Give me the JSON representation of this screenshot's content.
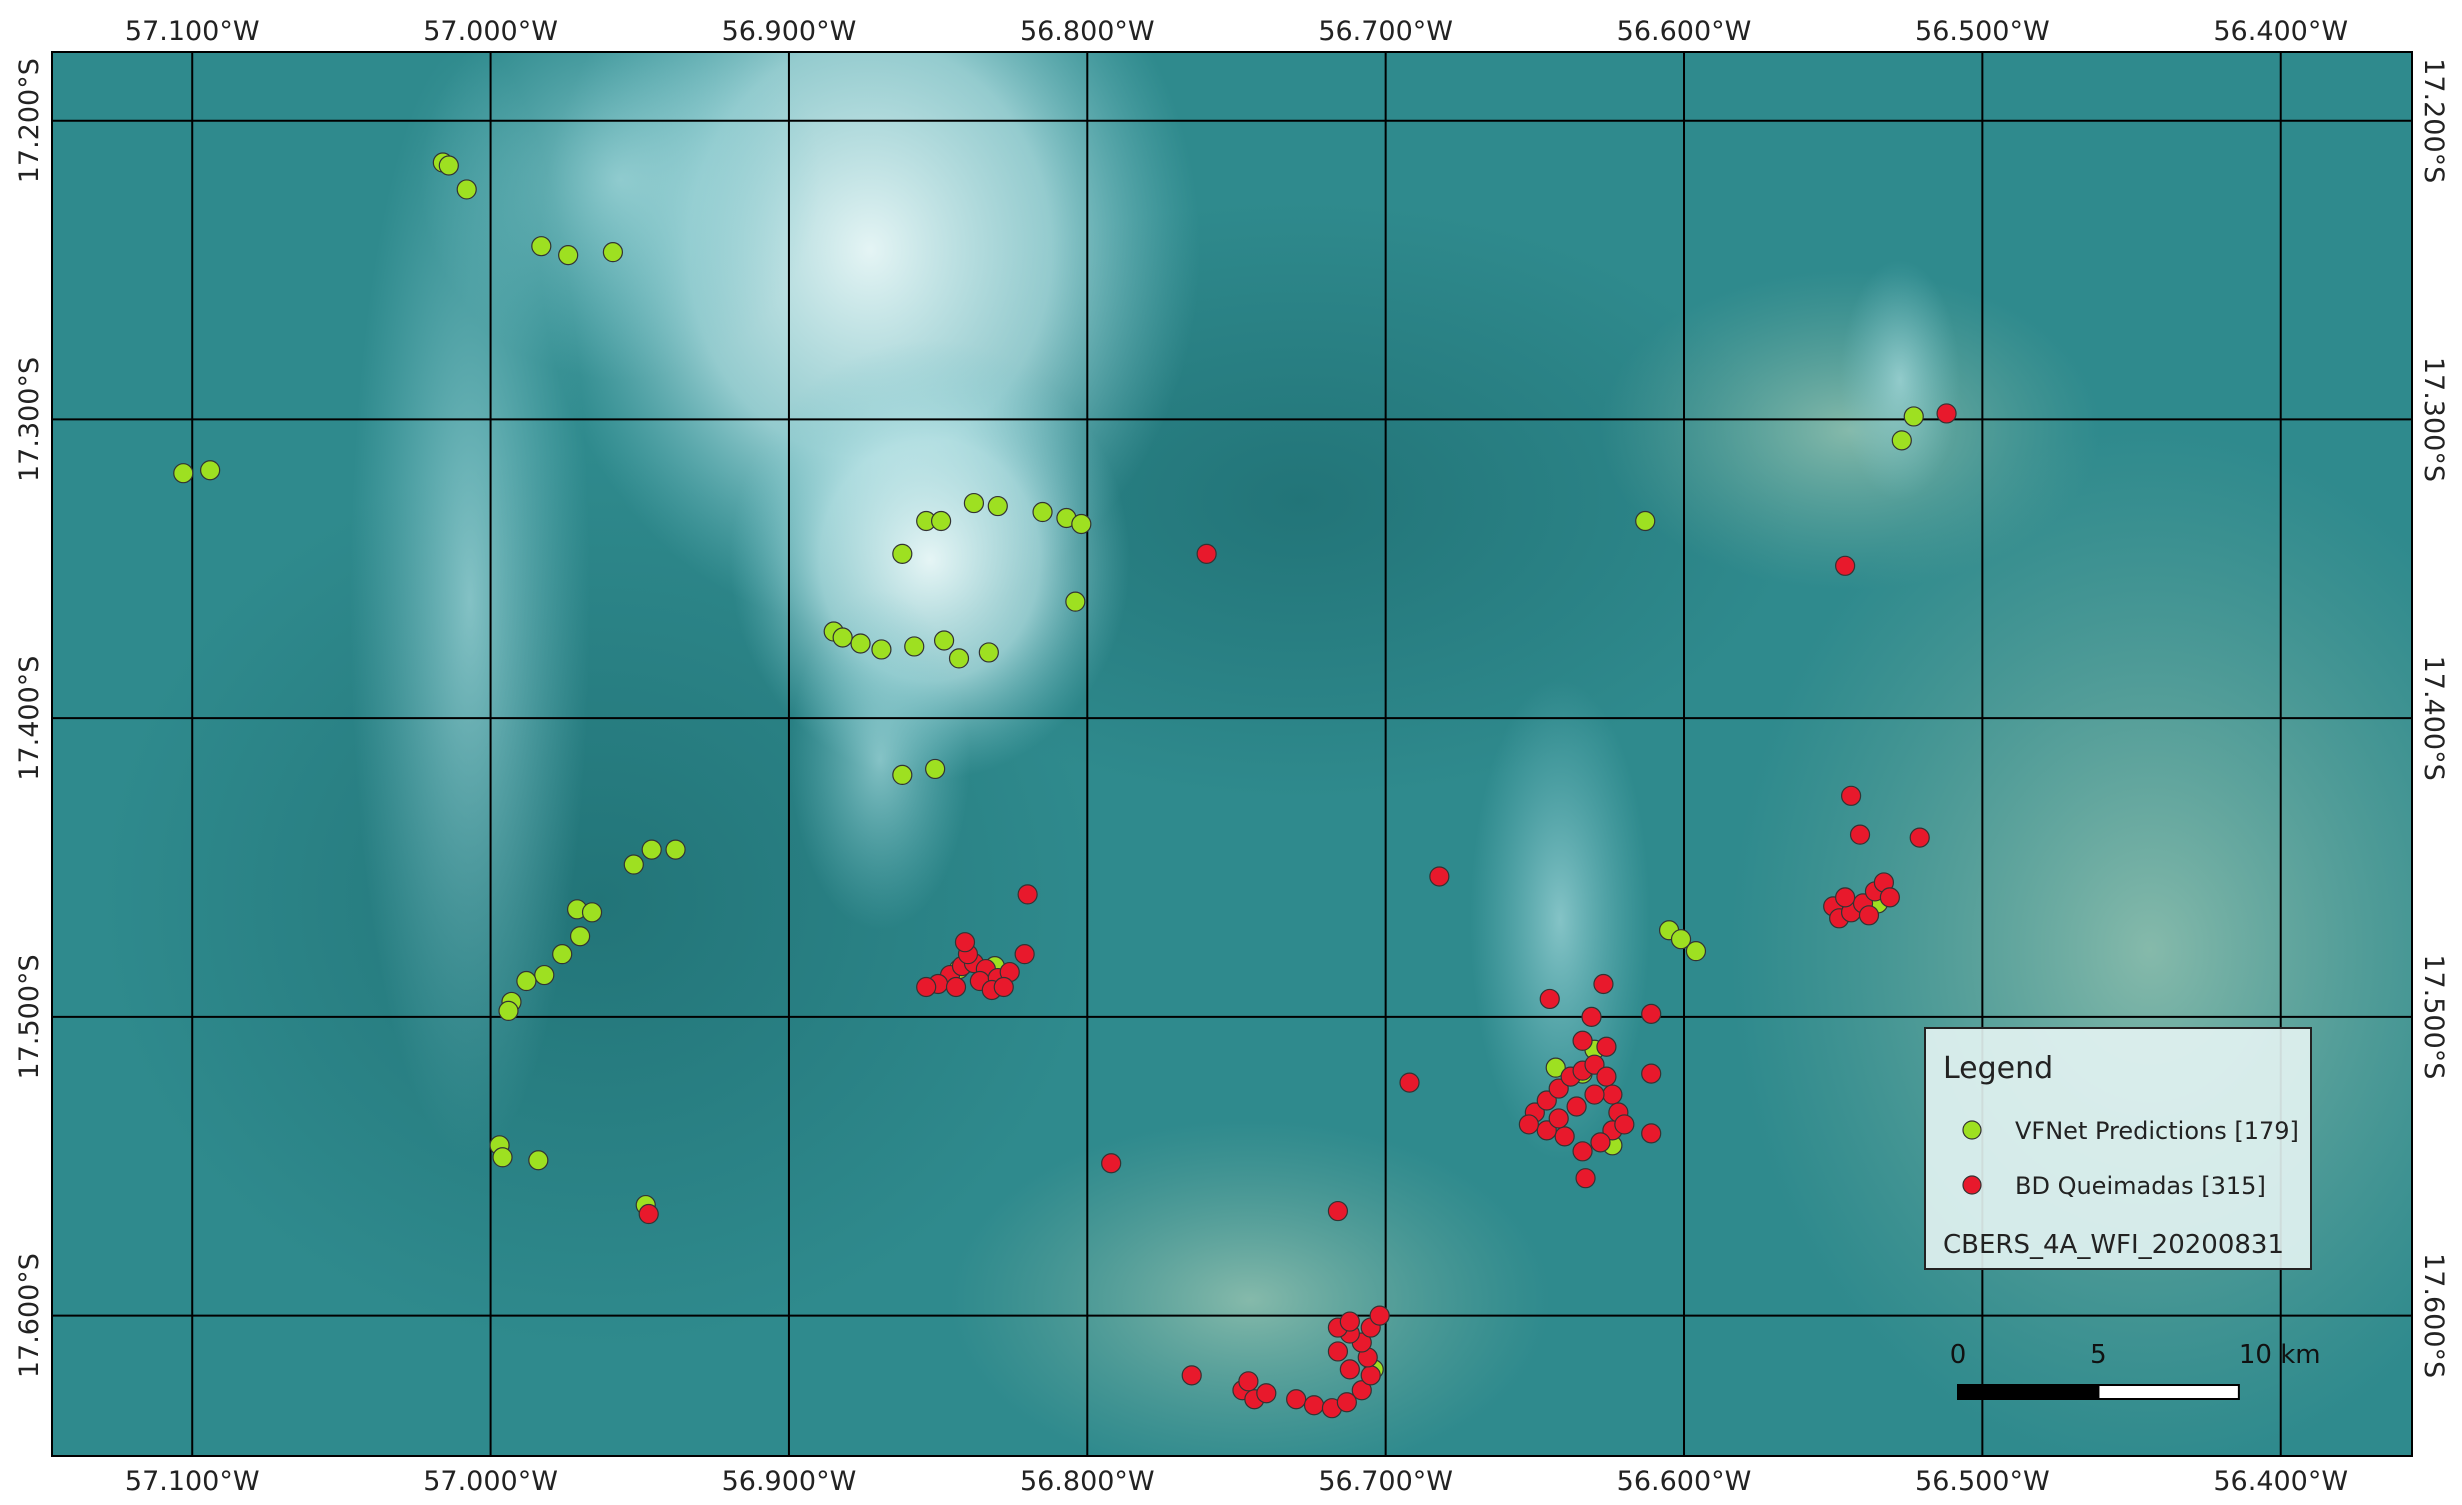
{
  "map": {
    "xlim": [
      -57.147,
      -56.356
    ],
    "ylim": [
      -17.647,
      -17.177
    ],
    "xticks": [
      {
        "value": -57.1,
        "label": "57.100°W"
      },
      {
        "value": -57.0,
        "label": "57.000°W"
      },
      {
        "value": -56.9,
        "label": "56.900°W"
      },
      {
        "value": -56.8,
        "label": "56.800°W"
      },
      {
        "value": -56.7,
        "label": "56.700°W"
      },
      {
        "value": -56.6,
        "label": "56.600°W"
      },
      {
        "value": -56.5,
        "label": "56.500°W"
      },
      {
        "value": -56.4,
        "label": "56.400°W"
      }
    ],
    "yticks": [
      {
        "value": -17.2,
        "label": "17.200°S"
      },
      {
        "value": -17.3,
        "label": "17.300°S"
      },
      {
        "value": -17.4,
        "label": "17.400°S"
      },
      {
        "value": -17.5,
        "label": "17.500°S"
      },
      {
        "value": -17.6,
        "label": "17.600°S"
      }
    ],
    "series": [
      {
        "name": "VFNet Predictions [179]",
        "color": "#9ee021",
        "points": [
          [
            -57.016,
            -17.214
          ],
          [
            -57.014,
            -17.215
          ],
          [
            -57.008,
            -17.223
          ],
          [
            -56.983,
            -17.242
          ],
          [
            -56.974,
            -17.245
          ],
          [
            -56.959,
            -17.244
          ],
          [
            -57.103,
            -17.318
          ],
          [
            -57.094,
            -17.317
          ],
          [
            -56.527,
            -17.307
          ],
          [
            -56.523,
            -17.299
          ],
          [
            -56.613,
            -17.334
          ],
          [
            -56.862,
            -17.345
          ],
          [
            -56.854,
            -17.334
          ],
          [
            -56.849,
            -17.334
          ],
          [
            -56.838,
            -17.328
          ],
          [
            -56.83,
            -17.329
          ],
          [
            -56.815,
            -17.331
          ],
          [
            -56.807,
            -17.333
          ],
          [
            -56.802,
            -17.335
          ],
          [
            -56.804,
            -17.361
          ],
          [
            -56.885,
            -17.371
          ],
          [
            -56.882,
            -17.373
          ],
          [
            -56.876,
            -17.375
          ],
          [
            -56.869,
            -17.377
          ],
          [
            -56.858,
            -17.376
          ],
          [
            -56.848,
            -17.374
          ],
          [
            -56.843,
            -17.38
          ],
          [
            -56.833,
            -17.378
          ],
          [
            -56.862,
            -17.419
          ],
          [
            -56.851,
            -17.417
          ],
          [
            -56.952,
            -17.449
          ],
          [
            -56.946,
            -17.444
          ],
          [
            -56.938,
            -17.444
          ],
          [
            -56.971,
            -17.464
          ],
          [
            -56.966,
            -17.465
          ],
          [
            -56.97,
            -17.473
          ],
          [
            -56.976,
            -17.479
          ],
          [
            -56.982,
            -17.486
          ],
          [
            -56.988,
            -17.488
          ],
          [
            -56.993,
            -17.495
          ],
          [
            -56.994,
            -17.498
          ],
          [
            -56.997,
            -17.543
          ],
          [
            -56.996,
            -17.547
          ],
          [
            -56.984,
            -17.548
          ],
          [
            -56.948,
            -17.563
          ],
          [
            -56.605,
            -17.471
          ],
          [
            -56.601,
            -17.474
          ],
          [
            -56.596,
            -17.478
          ],
          [
            -56.843,
            -17.484
          ],
          [
            -56.831,
            -17.483
          ],
          [
            -56.535,
            -17.462
          ],
          [
            -56.63,
            -17.511
          ],
          [
            -56.643,
            -17.517
          ],
          [
            -56.634,
            -17.519
          ],
          [
            -56.624,
            -17.543
          ],
          [
            -56.704,
            -17.618
          ]
        ]
      },
      {
        "name": "BD Queimadas [315]",
        "color": "#e8192c",
        "points": [
          [
            -56.76,
            -17.345
          ],
          [
            -56.512,
            -17.298
          ],
          [
            -56.546,
            -17.349
          ],
          [
            -56.682,
            -17.453
          ],
          [
            -56.82,
            -17.459
          ],
          [
            -56.821,
            -17.479
          ],
          [
            -56.544,
            -17.426
          ],
          [
            -56.541,
            -17.439
          ],
          [
            -56.521,
            -17.44
          ],
          [
            -56.692,
            -17.522
          ],
          [
            -56.645,
            -17.494
          ],
          [
            -56.627,
            -17.489
          ],
          [
            -56.611,
            -17.499
          ],
          [
            -56.611,
            -17.519
          ],
          [
            -56.611,
            -17.539
          ],
          [
            -56.631,
            -17.5
          ],
          [
            -56.792,
            -17.549
          ],
          [
            -56.716,
            -17.565
          ],
          [
            -56.765,
            -17.62
          ],
          [
            -56.947,
            -17.566
          ],
          [
            -56.846,
            -17.486
          ],
          [
            -56.842,
            -17.483
          ],
          [
            -56.838,
            -17.482
          ],
          [
            -56.834,
            -17.484
          ],
          [
            -56.84,
            -17.479
          ],
          [
            -56.836,
            -17.488
          ],
          [
            -56.83,
            -17.487
          ],
          [
            -56.826,
            -17.485
          ],
          [
            -56.85,
            -17.489
          ],
          [
            -56.854,
            -17.49
          ],
          [
            -56.844,
            -17.49
          ],
          [
            -56.832,
            -17.491
          ],
          [
            -56.828,
            -17.49
          ],
          [
            -56.841,
            -17.475
          ],
          [
            -56.65,
            -17.532
          ],
          [
            -56.646,
            -17.528
          ],
          [
            -56.642,
            -17.524
          ],
          [
            -56.638,
            -17.52
          ],
          [
            -56.634,
            -17.518
          ],
          [
            -56.63,
            -17.516
          ],
          [
            -56.626,
            -17.52
          ],
          [
            -56.624,
            -17.526
          ],
          [
            -56.622,
            -17.532
          ],
          [
            -56.624,
            -17.538
          ],
          [
            -56.628,
            -17.542
          ],
          [
            -56.634,
            -17.545
          ],
          [
            -56.64,
            -17.54
          ],
          [
            -56.646,
            -17.538
          ],
          [
            -56.652,
            -17.536
          ],
          [
            -56.636,
            -17.53
          ],
          [
            -56.63,
            -17.526
          ],
          [
            -56.642,
            -17.534
          ],
          [
            -56.626,
            -17.51
          ],
          [
            -56.634,
            -17.508
          ],
          [
            -56.62,
            -17.536
          ],
          [
            -56.633,
            -17.554
          ],
          [
            -56.55,
            -17.463
          ],
          [
            -56.548,
            -17.467
          ],
          [
            -56.544,
            -17.465
          ],
          [
            -56.54,
            -17.462
          ],
          [
            -56.536,
            -17.458
          ],
          [
            -56.533,
            -17.455
          ],
          [
            -56.531,
            -17.46
          ],
          [
            -56.538,
            -17.466
          ],
          [
            -56.546,
            -17.46
          ],
          [
            -56.748,
            -17.625
          ],
          [
            -56.744,
            -17.628
          ],
          [
            -56.74,
            -17.626
          ],
          [
            -56.73,
            -17.628
          ],
          [
            -56.724,
            -17.63
          ],
          [
            -56.718,
            -17.631
          ],
          [
            -56.713,
            -17.629
          ],
          [
            -56.708,
            -17.625
          ],
          [
            -56.705,
            -17.62
          ],
          [
            -56.706,
            -17.614
          ],
          [
            -56.708,
            -17.609
          ],
          [
            -56.712,
            -17.606
          ],
          [
            -56.716,
            -17.604
          ],
          [
            -56.712,
            -17.602
          ],
          [
            -56.705,
            -17.604
          ],
          [
            -56.702,
            -17.6
          ],
          [
            -56.716,
            -17.612
          ],
          [
            -56.712,
            -17.618
          ],
          [
            -56.746,
            -17.622
          ]
        ]
      }
    ],
    "legend_title": "Legend",
    "caption": "CBERS_4A_WFI_20200831",
    "scalebar": [
      0,
      5,
      {
        "value": 10,
        "label": "10 km"
      }
    ]
  }
}
